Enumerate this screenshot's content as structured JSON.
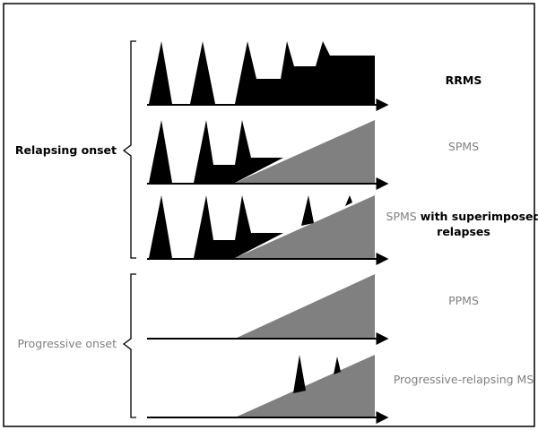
{
  "groups": {
    "relapsing": {
      "label": "Relapsing onset",
      "color": "#000000"
    },
    "progressive": {
      "label": "Progressive onset",
      "color": "#808080"
    }
  },
  "courses": {
    "rrms": {
      "label": "RRMS"
    },
    "spms": {
      "label": "SPMS"
    },
    "spms_relapses": {
      "prefix": "SPMS",
      "line1_rest": "with superimposed",
      "line2": "relapses"
    },
    "ppms": {
      "label": "PPMS"
    },
    "prms": {
      "label": "Progressive-relapsing MS"
    }
  },
  "colors": {
    "relapse_fill": "#000000",
    "progression_fill": "#808080",
    "axis": "#000000",
    "muted_text": "#808080",
    "frame": "#000000"
  }
}
